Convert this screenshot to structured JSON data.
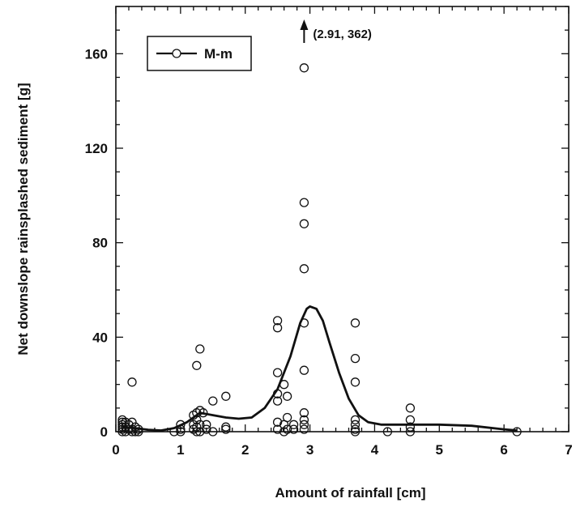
{
  "chart_data": {
    "type": "scatter",
    "xlabel": "Amount of rainfall [cm]",
    "ylabel": "Net downslope rainsplashed sediment [g]",
    "xlim": [
      0,
      7
    ],
    "ylim": [
      0,
      180
    ],
    "x_ticks": [
      "0",
      "1",
      "2",
      "3",
      "4",
      "5",
      "6",
      "7"
    ],
    "y_ticks": [
      "0",
      "40",
      "80",
      "120",
      "160"
    ],
    "grid": false,
    "legend_position": "top-left",
    "series": [
      {
        "name": "M-m",
        "marker": "open-circle",
        "points": [
          [
            0.1,
            5
          ],
          [
            0.1,
            4
          ],
          [
            0.1,
            3
          ],
          [
            0.1,
            2
          ],
          [
            0.1,
            1
          ],
          [
            0.1,
            0
          ],
          [
            0.15,
            4
          ],
          [
            0.15,
            2
          ],
          [
            0.15,
            0
          ],
          [
            0.2,
            3
          ],
          [
            0.2,
            1
          ],
          [
            0.25,
            21
          ],
          [
            0.25,
            4
          ],
          [
            0.25,
            1
          ],
          [
            0.25,
            0
          ],
          [
            0.3,
            2
          ],
          [
            0.3,
            0
          ],
          [
            0.35,
            1
          ],
          [
            0.35,
            0
          ],
          [
            0.9,
            0
          ],
          [
            1.0,
            3
          ],
          [
            1.0,
            1
          ],
          [
            1.0,
            0
          ],
          [
            1.2,
            7
          ],
          [
            1.2,
            3
          ],
          [
            1.2,
            1
          ],
          [
            1.25,
            28
          ],
          [
            1.25,
            8
          ],
          [
            1.25,
            5
          ],
          [
            1.25,
            2
          ],
          [
            1.25,
            0
          ],
          [
            1.3,
            35
          ],
          [
            1.3,
            9
          ],
          [
            1.3,
            3
          ],
          [
            1.3,
            0
          ],
          [
            1.35,
            8
          ],
          [
            1.4,
            3
          ],
          [
            1.4,
            1
          ],
          [
            1.5,
            13
          ],
          [
            1.5,
            0
          ],
          [
            1.7,
            15
          ],
          [
            1.7,
            2
          ],
          [
            1.7,
            1
          ],
          [
            2.5,
            47
          ],
          [
            2.5,
            44
          ],
          [
            2.5,
            25
          ],
          [
            2.5,
            16
          ],
          [
            2.5,
            13
          ],
          [
            2.5,
            4
          ],
          [
            2.5,
            1
          ],
          [
            2.6,
            20
          ],
          [
            2.6,
            3
          ],
          [
            2.6,
            0
          ],
          [
            2.65,
            15
          ],
          [
            2.65,
            6
          ],
          [
            2.65,
            1
          ],
          [
            2.75,
            3
          ],
          [
            2.75,
            1
          ],
          [
            2.91,
            154
          ],
          [
            2.91,
            97
          ],
          [
            2.91,
            88
          ],
          [
            2.91,
            69
          ],
          [
            2.91,
            46
          ],
          [
            2.91,
            26
          ],
          [
            2.91,
            8
          ],
          [
            2.91,
            5
          ],
          [
            2.91,
            3
          ],
          [
            2.91,
            1
          ],
          [
            3.7,
            46
          ],
          [
            3.7,
            31
          ],
          [
            3.7,
            21
          ],
          [
            3.7,
            5
          ],
          [
            3.7,
            3
          ],
          [
            3.7,
            1
          ],
          [
            3.7,
            0
          ],
          [
            4.2,
            0
          ],
          [
            4.55,
            10
          ],
          [
            4.55,
            5
          ],
          [
            4.55,
            2
          ],
          [
            4.55,
            0
          ],
          [
            6.2,
            0
          ]
        ],
        "outlier": {
          "x": 2.91,
          "y": 362,
          "label": "(2.91, 362)"
        },
        "smooth_curve": [
          [
            0.1,
            2
          ],
          [
            0.3,
            1.5
          ],
          [
            0.5,
            0.8
          ],
          [
            0.7,
            0.5
          ],
          [
            0.9,
            1.5
          ],
          [
            1.1,
            4
          ],
          [
            1.3,
            8
          ],
          [
            1.5,
            7
          ],
          [
            1.7,
            6
          ],
          [
            1.9,
            5.5
          ],
          [
            2.1,
            6
          ],
          [
            2.3,
            10
          ],
          [
            2.5,
            18
          ],
          [
            2.7,
            32
          ],
          [
            2.85,
            46
          ],
          [
            2.95,
            52
          ],
          [
            3.0,
            53
          ],
          [
            3.1,
            52
          ],
          [
            3.2,
            47
          ],
          [
            3.3,
            38
          ],
          [
            3.45,
            25
          ],
          [
            3.6,
            14
          ],
          [
            3.75,
            7
          ],
          [
            3.9,
            4
          ],
          [
            4.1,
            3
          ],
          [
            4.5,
            3
          ],
          [
            5.0,
            3
          ],
          [
            5.5,
            2.5
          ],
          [
            6.0,
            1
          ],
          [
            6.2,
            0.5
          ]
        ]
      }
    ]
  }
}
